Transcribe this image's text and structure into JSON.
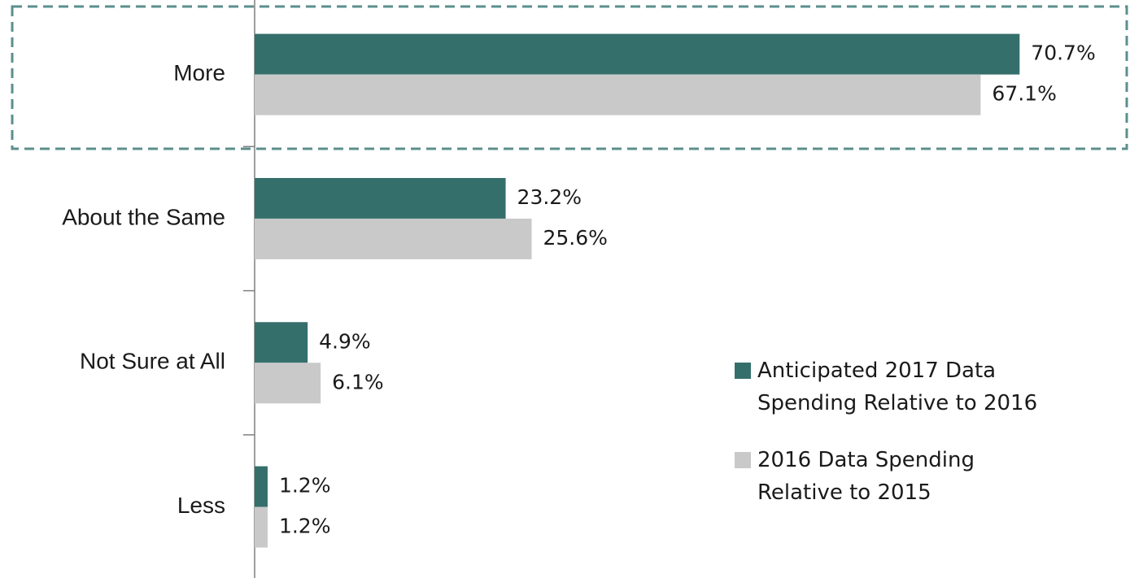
{
  "chart_data": {
    "type": "bar",
    "orientation": "horizontal",
    "categories": [
      "More",
      "About the Same",
      "Not Sure at All",
      "Less"
    ],
    "series": [
      {
        "name": "Anticipated 2017 Data Spending Relative to 2016",
        "color": "#356f6c",
        "values": [
          70.7,
          23.2,
          4.9,
          1.2
        ],
        "value_labels": [
          "70.7%",
          "23.2%",
          "4.9%",
          "1.2%"
        ]
      },
      {
        "name": "2016 Data Spending Relative to 2015",
        "color": "#c9c9c9",
        "values": [
          67.1,
          25.6,
          6.1,
          1.2
        ],
        "value_labels": [
          "67.1%",
          "25.6%",
          "6.1%",
          "1.2%"
        ]
      }
    ]
  }
}
